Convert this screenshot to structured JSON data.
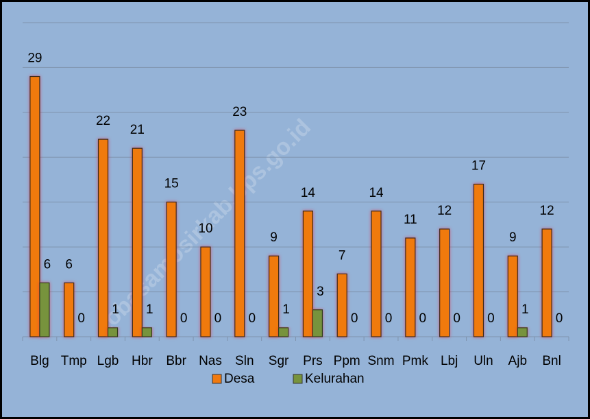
{
  "chart_data": {
    "type": "bar",
    "categories": [
      "Blg",
      "Tmp",
      "Lgb",
      "Hbr",
      "Bbr",
      "Nas",
      "Sln",
      "Sgr",
      "Prs",
      "Ppm",
      "Snm",
      "Pmk",
      "Lbj",
      "Uln",
      "Ajb",
      "Bnl"
    ],
    "series": [
      {
        "name": "Desa",
        "color": "#f07a10",
        "values": [
          29,
          6,
          22,
          21,
          15,
          10,
          23,
          9,
          14,
          7,
          14,
          11,
          12,
          17,
          9,
          12
        ]
      },
      {
        "name": "Kelurahan",
        "color": "#77933c",
        "values": [
          6,
          0,
          1,
          1,
          0,
          0,
          0,
          1,
          3,
          0,
          0,
          0,
          0,
          0,
          1,
          0
        ]
      }
    ],
    "ylim": [
      0,
      35
    ],
    "yticks": [
      0,
      5,
      10,
      15,
      20,
      25,
      30,
      35
    ],
    "grid": true,
    "legend": "bottom",
    "watermark": "tobasamosirkab.bps.go.id"
  }
}
